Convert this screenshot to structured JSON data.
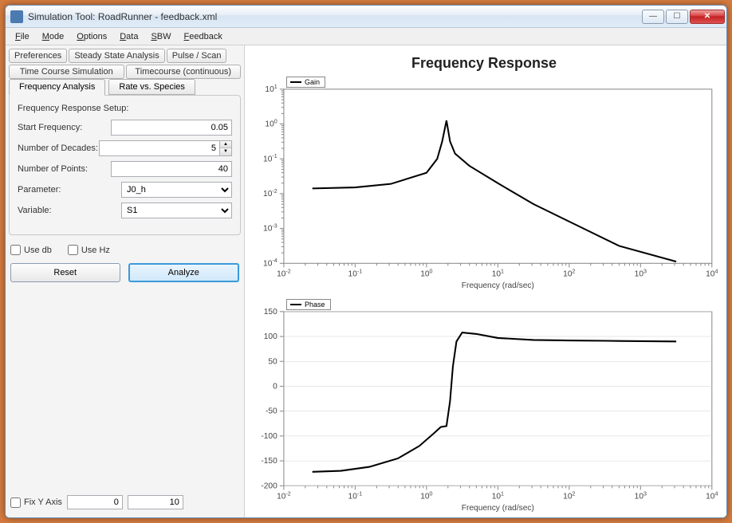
{
  "window": {
    "title": "Simulation Tool: RoadRunner - feedback.xml"
  },
  "menus": [
    "File",
    "Mode",
    "Options",
    "Data",
    "SBW",
    "Feedback"
  ],
  "tabs_row1": [
    "Preferences",
    "Steady State Analysis",
    "Pulse / Scan"
  ],
  "tabs_row2": [
    "Time Course Simulation",
    "Timecourse (continuous)"
  ],
  "tabs_row3": {
    "active": "Frequency Analysis",
    "other": "Rate vs. Species"
  },
  "form": {
    "title": "Frequency Response Setup:",
    "start_freq_label": "Start Frequency:",
    "start_freq": "0.05",
    "decades_label": "Number of Decades:",
    "decades": "5",
    "points_label": "Number of Points:",
    "points": "40",
    "param_label": "Parameter:",
    "param": "J0_h",
    "var_label": "Variable:",
    "var": "S1"
  },
  "checks": {
    "db": "Use db",
    "hz": "Use Hz"
  },
  "buttons": {
    "reset": "Reset",
    "analyze": "Analyze"
  },
  "fix_y": {
    "label": "Fix Y Axis",
    "min": "0",
    "max": "10"
  },
  "chart": {
    "title": "Frequency Response",
    "xlabel": "Frequency (rad/sec)",
    "gain": {
      "legend": "Gain",
      "x_exp": [
        -2,
        -1,
        0,
        1,
        2,
        3,
        4
      ],
      "y_exp": [
        -4,
        -3,
        -2,
        -1,
        0,
        1
      ],
      "line": [
        [
          -1.6,
          -1.85
        ],
        [
          -1.0,
          -1.82
        ],
        [
          -0.5,
          -1.72
        ],
        [
          0.0,
          -1.4
        ],
        [
          0.15,
          -1.0
        ],
        [
          0.22,
          -0.5
        ],
        [
          0.28,
          0.1
        ],
        [
          0.33,
          -0.5
        ],
        [
          0.4,
          -0.85
        ],
        [
          0.6,
          -1.2
        ],
        [
          1.0,
          -1.7
        ],
        [
          1.5,
          -2.3
        ],
        [
          2.0,
          -2.8
        ],
        [
          2.7,
          -3.5
        ],
        [
          3.5,
          -3.95
        ]
      ]
    },
    "phase": {
      "legend": "Phase",
      "x_exp": [
        -2,
        -1,
        0,
        1,
        2,
        3,
        4
      ],
      "y_ticks": [
        -200,
        -150,
        -100,
        -50,
        0,
        50,
        100,
        150
      ],
      "line": [
        [
          -1.6,
          -172
        ],
        [
          -1.2,
          -170
        ],
        [
          -0.8,
          -162
        ],
        [
          -0.4,
          -145
        ],
        [
          -0.1,
          -120
        ],
        [
          0.1,
          -95
        ],
        [
          0.2,
          -82
        ],
        [
          0.28,
          -80
        ],
        [
          0.33,
          -30
        ],
        [
          0.37,
          40
        ],
        [
          0.42,
          90
        ],
        [
          0.5,
          108
        ],
        [
          0.7,
          105
        ],
        [
          1.0,
          97
        ],
        [
          1.5,
          93
        ],
        [
          2.0,
          92
        ],
        [
          2.7,
          91
        ],
        [
          3.5,
          90
        ]
      ]
    }
  },
  "colors": {
    "axis": "#888888",
    "grid": "#d0d0d0",
    "line": "#000000",
    "text": "#444444"
  }
}
